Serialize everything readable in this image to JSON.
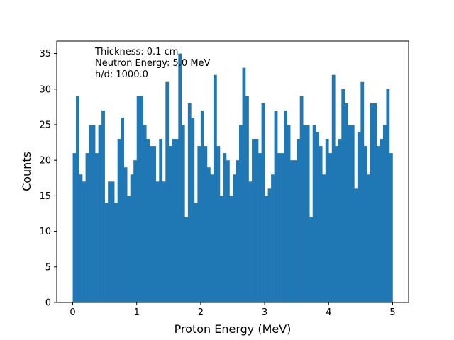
{
  "chart_data": {
    "type": "bar",
    "title": "",
    "xlabel": "Proton Energy (MeV)",
    "ylabel": "Counts",
    "xlim": [
      -0.25,
      5.25
    ],
    "ylim": [
      0,
      36.75
    ],
    "bin_start": 0,
    "bin_width": 0.05,
    "x_ticks": [
      0,
      1,
      2,
      3,
      4,
      5
    ],
    "x_tick_labels": [
      "0",
      "1",
      "2",
      "3",
      "4",
      "5"
    ],
    "y_ticks": [
      0,
      5,
      10,
      15,
      20,
      25,
      30,
      35
    ],
    "y_tick_labels": [
      "0",
      "5",
      "10",
      "15",
      "20",
      "25",
      "30",
      "35"
    ],
    "grid": false,
    "bar_color": "#1f77b4",
    "annotations": [
      "Thickness: 0.1 cm",
      "Neutron Energy: 5.0 MeV",
      "h/d: 1000.0"
    ],
    "values": [
      21,
      29,
      18,
      17,
      21,
      25,
      25,
      21,
      25,
      27,
      14,
      17,
      17,
      14,
      23,
      26,
      19,
      15,
      18,
      20,
      29,
      29,
      25,
      23,
      22,
      22,
      17,
      23,
      17,
      31,
      22,
      23,
      23,
      35,
      25,
      12,
      28,
      26,
      14,
      22,
      27,
      22,
      19,
      18,
      32,
      22,
      15,
      21,
      20,
      15,
      18,
      20,
      25,
      33,
      29,
      17,
      23,
      23,
      21,
      28,
      15,
      16,
      18,
      27,
      21,
      21,
      27,
      25,
      20,
      20,
      23,
      29,
      25,
      25,
      12,
      25,
      24,
      22,
      18,
      23,
      21,
      32,
      22,
      23,
      30,
      28,
      25,
      25,
      16,
      24,
      31,
      22,
      18,
      28,
      28,
      22,
      23,
      25,
      30,
      21
    ]
  }
}
